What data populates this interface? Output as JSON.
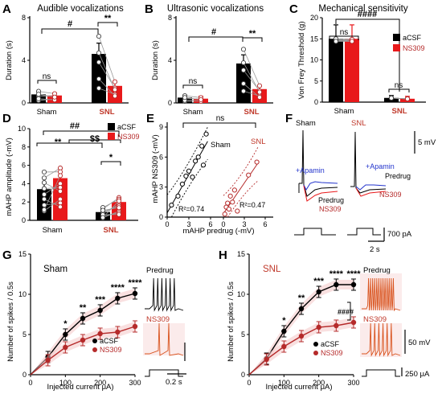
{
  "colors": {
    "acsf": "#000000",
    "ns309": "#e8191b",
    "ns309_dark": "#b52a2a",
    "sham_dot": "#555555",
    "apamin": "#2233cc",
    "pink": "#f4c6c6",
    "trace_orange": "#d9531e"
  },
  "chart_data": [
    {
      "id": "A",
      "panel_label": "A",
      "type": "bar",
      "title": "Audible vocalizations",
      "ylabel": "Duration (s)",
      "ylim": [
        0,
        8
      ],
      "yticks": [
        0,
        4,
        8
      ],
      "categories": [
        "Sham",
        "SNL"
      ],
      "series": [
        {
          "values": [
            0.8,
            4.6
          ]
        },
        {
          "values": [
            0.7,
            1.6
          ]
        }
      ],
      "annotations": {
        "hash": "#",
        "stars": "**",
        "ns": "ns"
      }
    },
    {
      "id": "B",
      "panel_label": "B",
      "type": "bar",
      "title": "Ultrasonic  vocalizations",
      "ylabel": "Duration (s)",
      "ylim": [
        0,
        8
      ],
      "yticks": [
        0,
        4,
        8
      ],
      "categories": [
        "Sham",
        "SNL"
      ],
      "series": [
        {
          "values": [
            0.5,
            3.7
          ]
        },
        {
          "values": [
            0.4,
            1.3
          ]
        }
      ],
      "annotations": {
        "hash": "#",
        "stars": "**",
        "ns": "ns"
      }
    },
    {
      "id": "C",
      "panel_label": "C",
      "type": "bar",
      "title": "Mechanical sensitivity",
      "ylabel": "Von Frey Threshold (g)",
      "ylim": [
        0,
        20
      ],
      "yticks": [
        0,
        5,
        10,
        15,
        20
      ],
      "categories": [
        "Sham",
        "SNL"
      ],
      "series": [
        {
          "name": "aCSF",
          "values": [
            15,
            1.0
          ]
        },
        {
          "name": "NS309",
          "values": [
            15,
            0.8
          ]
        }
      ],
      "annotations": {
        "hash": "####",
        "ns": "ns"
      }
    },
    {
      "id": "D",
      "panel_label": "D",
      "type": "bar",
      "ylabel": "mAHP amplitude (-mV)",
      "ylim": [
        0,
        10
      ],
      "yticks": [
        0,
        2,
        4,
        6,
        8,
        10
      ],
      "categories": [
        "Sham",
        "SNL"
      ],
      "series": [
        {
          "name": "aCSF",
          "values": [
            3.4,
            0.9
          ]
        },
        {
          "name": "NS309",
          "values": [
            4.6,
            2.0
          ]
        }
      ],
      "annotations": {
        "hash": "##",
        "stars2": "**",
        "dollar": "$$",
        "star": "*"
      }
    },
    {
      "id": "E",
      "panel_label": "E",
      "type": "scatter",
      "xlabel": "mAHP predrug (-mV)",
      "ylabel": "mAHP NS309 (-mV)",
      "ylim": [
        0,
        9
      ],
      "yticks": [
        0,
        3,
        6,
        9
      ],
      "xticks_sham": [
        0,
        3,
        6
      ],
      "xticks_snl": [
        0,
        3,
        6
      ],
      "series": [
        {
          "name": "Sham",
          "r2": "R²=0.74",
          "x": [
            0.6,
            1.5,
            2.1,
            2.6,
            3.0,
            3.5,
            3.9,
            4.3,
            4.8,
            5.0,
            5.4
          ],
          "y": [
            1.2,
            2.1,
            3.3,
            4.1,
            4.6,
            4.0,
            5.6,
            6.0,
            7.1,
            5.2,
            8.3
          ]
        },
        {
          "name": "SNL",
          "r2": "R²=0.47",
          "x": [
            0.2,
            0.4,
            0.6,
            0.8,
            1.0,
            1.3,
            1.6,
            2.0,
            3.6,
            4.8
          ],
          "y": [
            0.3,
            1.0,
            1.4,
            0.8,
            2.1,
            1.5,
            2.7,
            0.6,
            4.2,
            5.5
          ]
        }
      ],
      "annotations": {
        "ns": "ns"
      }
    },
    {
      "id": "G",
      "panel_label": "G",
      "type": "line",
      "title": "Sham",
      "xlabel": "Injected current μA)",
      "ylabel": "Number of spikes / 0.5s",
      "xlim": [
        0,
        300
      ],
      "ylim": [
        0,
        15
      ],
      "xticks": [
        0,
        100,
        200,
        300
      ],
      "yticks": [
        0,
        5,
        10,
        15
      ],
      "x": [
        50,
        100,
        150,
        200,
        250,
        300
      ],
      "series": [
        {
          "name": "aCSF",
          "values": [
            2.2,
            5.0,
            7.0,
            8.0,
            9.5,
            10.1
          ]
        },
        {
          "name": "NS309",
          "values": [
            1.8,
            3.4,
            4.3,
            5.1,
            5.3,
            6.0
          ]
        }
      ],
      "sig": [
        "*",
        "**",
        "***",
        "****",
        "****"
      ],
      "traces": [
        "Predrug",
        "NS309"
      ]
    },
    {
      "id": "H",
      "panel_label": "H",
      "type": "line",
      "title": "SNL",
      "xlabel": "Injected current μA)",
      "ylabel": "Number of spikes / 0.5s",
      "xlim": [
        0,
        300
      ],
      "ylim": [
        0,
        15
      ],
      "xticks": [
        0,
        100,
        200,
        300
      ],
      "yticks": [
        0,
        5,
        10,
        15
      ],
      "x": [
        50,
        100,
        150,
        200,
        250,
        300
      ],
      "series": [
        {
          "name": "aCSF",
          "values": [
            2.0,
            5.4,
            8.2,
            10.3,
            11.2,
            11.2
          ]
        },
        {
          "name": "NS309",
          "values": [
            1.9,
            3.5,
            4.8,
            5.9,
            6.1,
            6.5
          ]
        }
      ],
      "sig": [
        "*",
        "**",
        "***",
        "****",
        "****"
      ],
      "hash": "####",
      "traces": [
        "Predrug",
        "NS309"
      ]
    }
  ],
  "panelF": {
    "label": "F",
    "sham": "Sham",
    "snl": "SNL",
    "apamin": "+Apamin",
    "predrug": "Predrug",
    "ns309": "NS309",
    "scale_mv": "5 mV",
    "scale_time": "2 s",
    "scale_pa": "700 pA"
  },
  "scales": {
    "mv50": "50 mV",
    "t02": "0.2 s",
    "pa250": "250 μA"
  }
}
